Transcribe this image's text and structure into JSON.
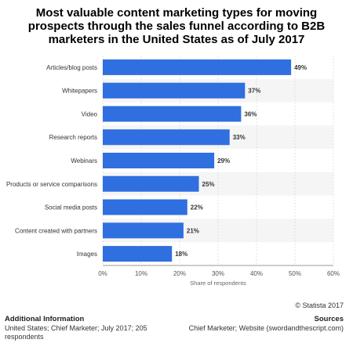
{
  "colors": {
    "bar": "#2f6fe0",
    "band": "#f5f5f5",
    "grid": "#dddddd",
    "axis": "#999999",
    "text": "#333333"
  },
  "chart_data": {
    "type": "bar",
    "orientation": "horizontal",
    "title": "Most valuable content marketing types for moving prospects through the sales funnel according to B2B marketers in the United States as of July 2017",
    "categories": [
      "Articles/blog posts",
      "Whitepapers",
      "Video",
      "Research reports",
      "Webinars",
      "Products or service comparisons",
      "Social media posts",
      "Content created with partners",
      "Images"
    ],
    "values": [
      49,
      37,
      36,
      33,
      29,
      25,
      22,
      21,
      18
    ],
    "data_labels": [
      "49%",
      "37%",
      "36%",
      "33%",
      "29%",
      "25%",
      "22%",
      "21%",
      "18%"
    ],
    "xlabel": "Share of respondents",
    "xlim": [
      0,
      60
    ],
    "xticks": [
      0,
      10,
      20,
      30,
      40,
      50,
      60
    ],
    "xtick_labels": [
      "0%",
      "10%",
      "20%",
      "30%",
      "40%",
      "50%",
      "60%"
    ],
    "grid": true
  },
  "footer": {
    "copyright": "© Statista 2017",
    "info_heading": "Additional Information",
    "info_text": "United States; Chief Marketer; July 2017; 205 respondents",
    "sources_heading": "Sources",
    "sources_text": "Chief Marketer; Website (swordandthescript.com)"
  }
}
